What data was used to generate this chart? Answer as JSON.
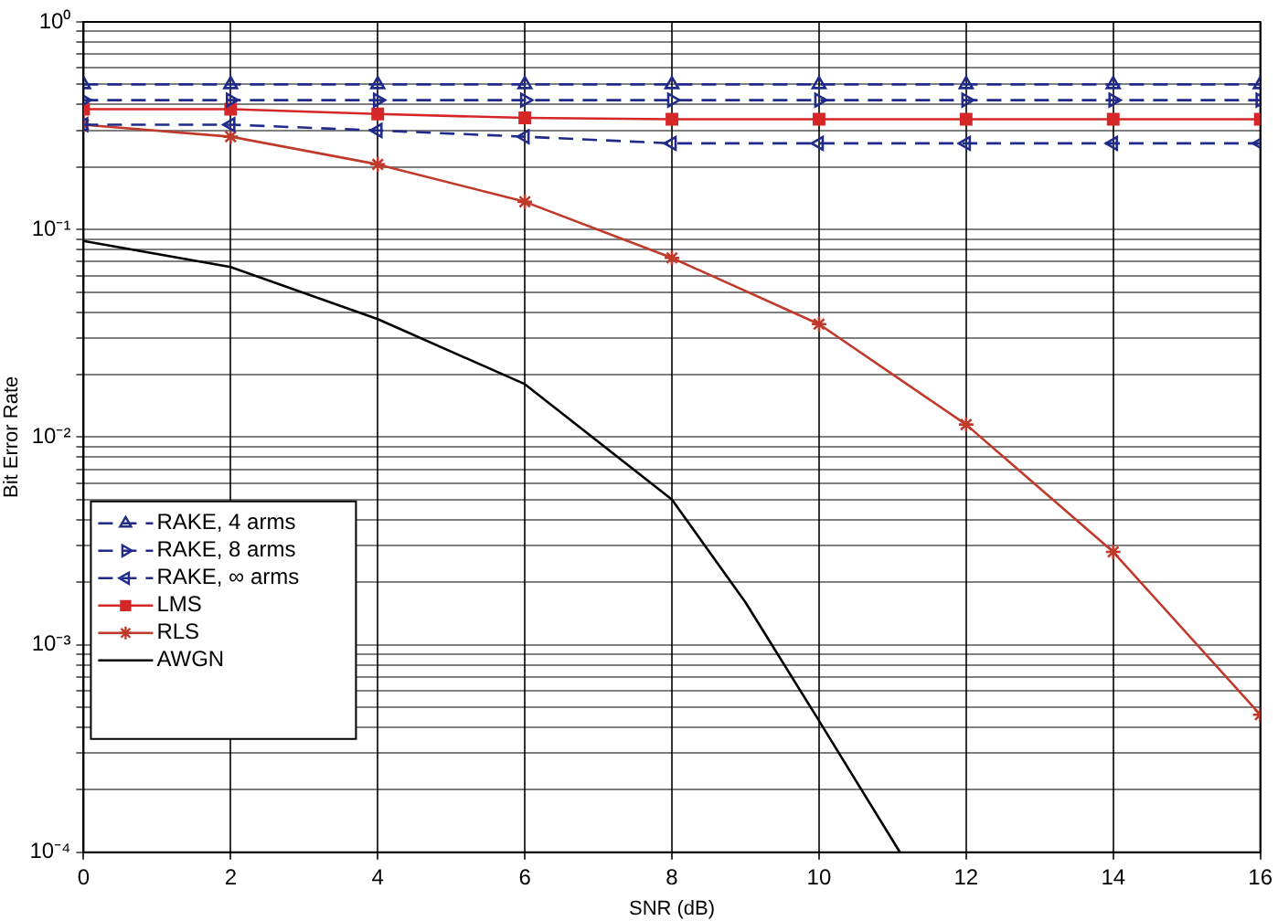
{
  "chart_data": {
    "type": "line",
    "xlabel": "SNR (dB)",
    "ylabel": "Bit Error Rate",
    "log": "y",
    "grid": true,
    "legend": "bottom left",
    "xlim": [
      0,
      16
    ],
    "xticks": [
      0,
      2,
      4,
      6,
      8,
      10,
      12,
      14,
      16
    ],
    "ylim": [
      0.0001,
      1
    ],
    "yticks": [
      {
        "value": 0.0001,
        "label": "10⁻⁴"
      },
      {
        "value": 0.0002,
        "label": null
      },
      {
        "value": 0.0003,
        "label": null
      },
      {
        "value": 0.0004,
        "label": null
      },
      {
        "value": 0.0005,
        "label": null
      },
      {
        "value": 0.0006,
        "label": null
      },
      {
        "value": 0.0007,
        "label": null
      },
      {
        "value": 0.0008,
        "label": null
      },
      {
        "value": 0.0009,
        "label": null
      },
      {
        "value": 0.001,
        "label": "10⁻³"
      },
      {
        "value": 0.002,
        "label": null
      },
      {
        "value": 0.003,
        "label": null
      },
      {
        "value": 0.004,
        "label": null
      },
      {
        "value": 0.005,
        "label": null
      },
      {
        "value": 0.006,
        "label": null
      },
      {
        "value": 0.007,
        "label": null
      },
      {
        "value": 0.008,
        "label": null
      },
      {
        "value": 0.009,
        "label": null
      },
      {
        "value": 0.01,
        "label": "10⁻²"
      },
      {
        "value": 0.02,
        "label": null
      },
      {
        "value": 0.03,
        "label": null
      },
      {
        "value": 0.04,
        "label": null
      },
      {
        "value": 0.05,
        "label": null
      },
      {
        "value": 0.06,
        "label": null
      },
      {
        "value": 0.07,
        "label": null
      },
      {
        "value": 0.08,
        "label": null
      },
      {
        "value": 0.09,
        "label": null
      },
      {
        "value": 0.1,
        "label": "10⁻¹"
      },
      {
        "value": 0.2,
        "label": null
      },
      {
        "value": 0.3,
        "label": null
      },
      {
        "value": 0.4,
        "label": null
      },
      {
        "value": 0.5,
        "label": null
      },
      {
        "value": 0.6,
        "label": null
      },
      {
        "value": 0.7,
        "label": null
      },
      {
        "value": 0.8,
        "label": null
      },
      {
        "value": 0.9,
        "label": null
      },
      {
        "value": 1,
        "label": "10⁰"
      }
    ],
    "series": [
      {
        "name": "RAKE, 4 arms",
        "color": "#1f2a8a",
        "marker": "triangle",
        "line_style": "dashed",
        "x": [
          0,
          2,
          4,
          6,
          8,
          10,
          12,
          14,
          16
        ],
        "values": [
          0.5,
          0.5,
          0.5,
          0.5,
          0.5,
          0.5,
          0.5,
          0.5,
          0.5
        ]
      },
      {
        "name": "RAKE, 8 arms",
        "color": "#1f2a8a",
        "marker": "triangle-right",
        "line_style": "dashed",
        "x": [
          0,
          2,
          4,
          6,
          8,
          10,
          12,
          14,
          16
        ],
        "values": [
          0.42,
          0.42,
          0.42,
          0.42,
          0.42,
          0.42,
          0.42,
          0.42,
          0.42
        ]
      },
      {
        "name": "RAKE, ∞ arms",
        "color": "#1f2a8a",
        "marker": "triangle-left",
        "line_style": "dashed",
        "x": [
          0,
          2,
          4,
          6,
          8,
          10,
          12,
          14,
          16
        ],
        "values": [
          0.32,
          0.32,
          0.3,
          0.28,
          0.26,
          0.26,
          0.26,
          0.26,
          0.26
        ]
      },
      {
        "name": "LMS",
        "color": "#d62728",
        "marker": "square",
        "line_style": "solid",
        "x": [
          0,
          2,
          4,
          6,
          8,
          10,
          12,
          14,
          16
        ],
        "values": [
          0.38,
          0.38,
          0.36,
          0.345,
          0.34,
          0.34,
          0.34,
          0.34,
          0.34
        ]
      },
      {
        "name": "RLS",
        "color": "#c0392b",
        "marker": "cross",
        "line_style": "solid",
        "x": [
          0,
          2,
          4,
          6,
          8,
          10,
          12,
          14,
          16
        ],
        "values": [
          0.32,
          0.28,
          0.206,
          0.136,
          0.073,
          0.035,
          0.0115,
          0.0028,
          0.00046
        ]
      },
      {
        "name": "AWGN",
        "color": "#000000",
        "marker": "none",
        "line_style": "solid",
        "x": [
          0,
          2,
          4,
          6,
          8,
          9,
          10,
          11.1
        ],
        "values": [
          0.088,
          0.066,
          0.037,
          0.018,
          0.005,
          0.0016,
          0.00043,
          0.0001
        ]
      }
    ]
  }
}
